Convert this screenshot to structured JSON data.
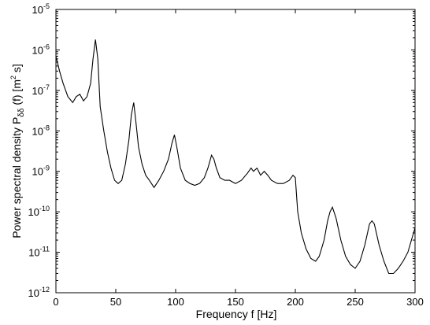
{
  "chart_data": {
    "type": "line",
    "title": "",
    "xlabel": "Frequency  f   [Hz]",
    "ylabel": "Power spectral density  P",
    "ylabel_subscript": "δδ",
    "ylabel_suffix": " (f)   [m",
    "ylabel_sup": "2",
    "ylabel_end": " s]",
    "xlim": [
      0,
      300
    ],
    "ylim": [
      1e-12,
      1e-05
    ],
    "yscale": "log",
    "grid": false,
    "legend": "none",
    "x_ticks": [
      "0",
      "50",
      "100",
      "150",
      "200",
      "250",
      "300"
    ],
    "y_ticks": [
      {
        "base": "10",
        "exp": "-12"
      },
      {
        "base": "10",
        "exp": "-11"
      },
      {
        "base": "10",
        "exp": "-10"
      },
      {
        "base": "10",
        "exp": "-9"
      },
      {
        "base": "10",
        "exp": "-8"
      },
      {
        "base": "10",
        "exp": "-7"
      },
      {
        "base": "10",
        "exp": "-6"
      },
      {
        "base": "10",
        "exp": "-5"
      }
    ],
    "series": [
      {
        "color": "#000000",
        "x": [
          0,
          3,
          6,
          10,
          14,
          17,
          20,
          23,
          26,
          29,
          31,
          33,
          35,
          37,
          40,
          43,
          46,
          49,
          52,
          55,
          58,
          61,
          63,
          65,
          67,
          69,
          72,
          75,
          78,
          82,
          86,
          90,
          94,
          97,
          99,
          101,
          104,
          108,
          112,
          116,
          120,
          124,
          127,
          130,
          132,
          134,
          137,
          141,
          145,
          150,
          155,
          160,
          163,
          165,
          168,
          171,
          174,
          177,
          180,
          185,
          190,
          195,
          198,
          200,
          202,
          205,
          209,
          213,
          217,
          220,
          224,
          227,
          229,
          231,
          234,
          238,
          242,
          246,
          250,
          254,
          258,
          262,
          264,
          266,
          270,
          274,
          278,
          282,
          286,
          290,
          294,
          297,
          300
        ],
        "y": [
          7e-07,
          3e-07,
          1.5e-07,
          7e-08,
          5e-08,
          7e-08,
          8e-08,
          5.5e-08,
          7e-08,
          1.5e-07,
          6e-07,
          1.8e-06,
          6e-07,
          4e-08,
          1e-08,
          3e-09,
          1.2e-09,
          6e-10,
          5e-10,
          6e-10,
          1.5e-09,
          6e-09,
          2.5e-08,
          5e-08,
          1.5e-08,
          4e-09,
          1.5e-09,
          8e-10,
          6e-10,
          4e-10,
          6e-10,
          1e-09,
          2e-09,
          5e-09,
          8e-09,
          4e-09,
          1.2e-09,
          6e-10,
          5e-10,
          4.5e-10,
          5e-10,
          7e-10,
          1.2e-09,
          2.5e-09,
          2e-09,
          1.2e-09,
          7e-10,
          6e-10,
          6e-10,
          5e-10,
          6e-10,
          9e-10,
          1.2e-09,
          1e-09,
          1.2e-09,
          8e-10,
          1e-09,
          8e-10,
          6e-10,
          5e-10,
          5e-10,
          6e-10,
          8e-10,
          7e-10,
          1e-10,
          3e-11,
          1.2e-11,
          7e-12,
          6e-12,
          8e-12,
          2e-11,
          6e-11,
          1e-10,
          1.3e-10,
          7e-11,
          2e-11,
          8e-12,
          5e-12,
          4e-12,
          6e-12,
          1.5e-11,
          5e-11,
          6e-11,
          5e-11,
          1.5e-11,
          6e-12,
          3e-12,
          3e-12,
          4e-12,
          6e-12,
          1e-11,
          2e-11,
          4e-11
        ]
      }
    ]
  }
}
